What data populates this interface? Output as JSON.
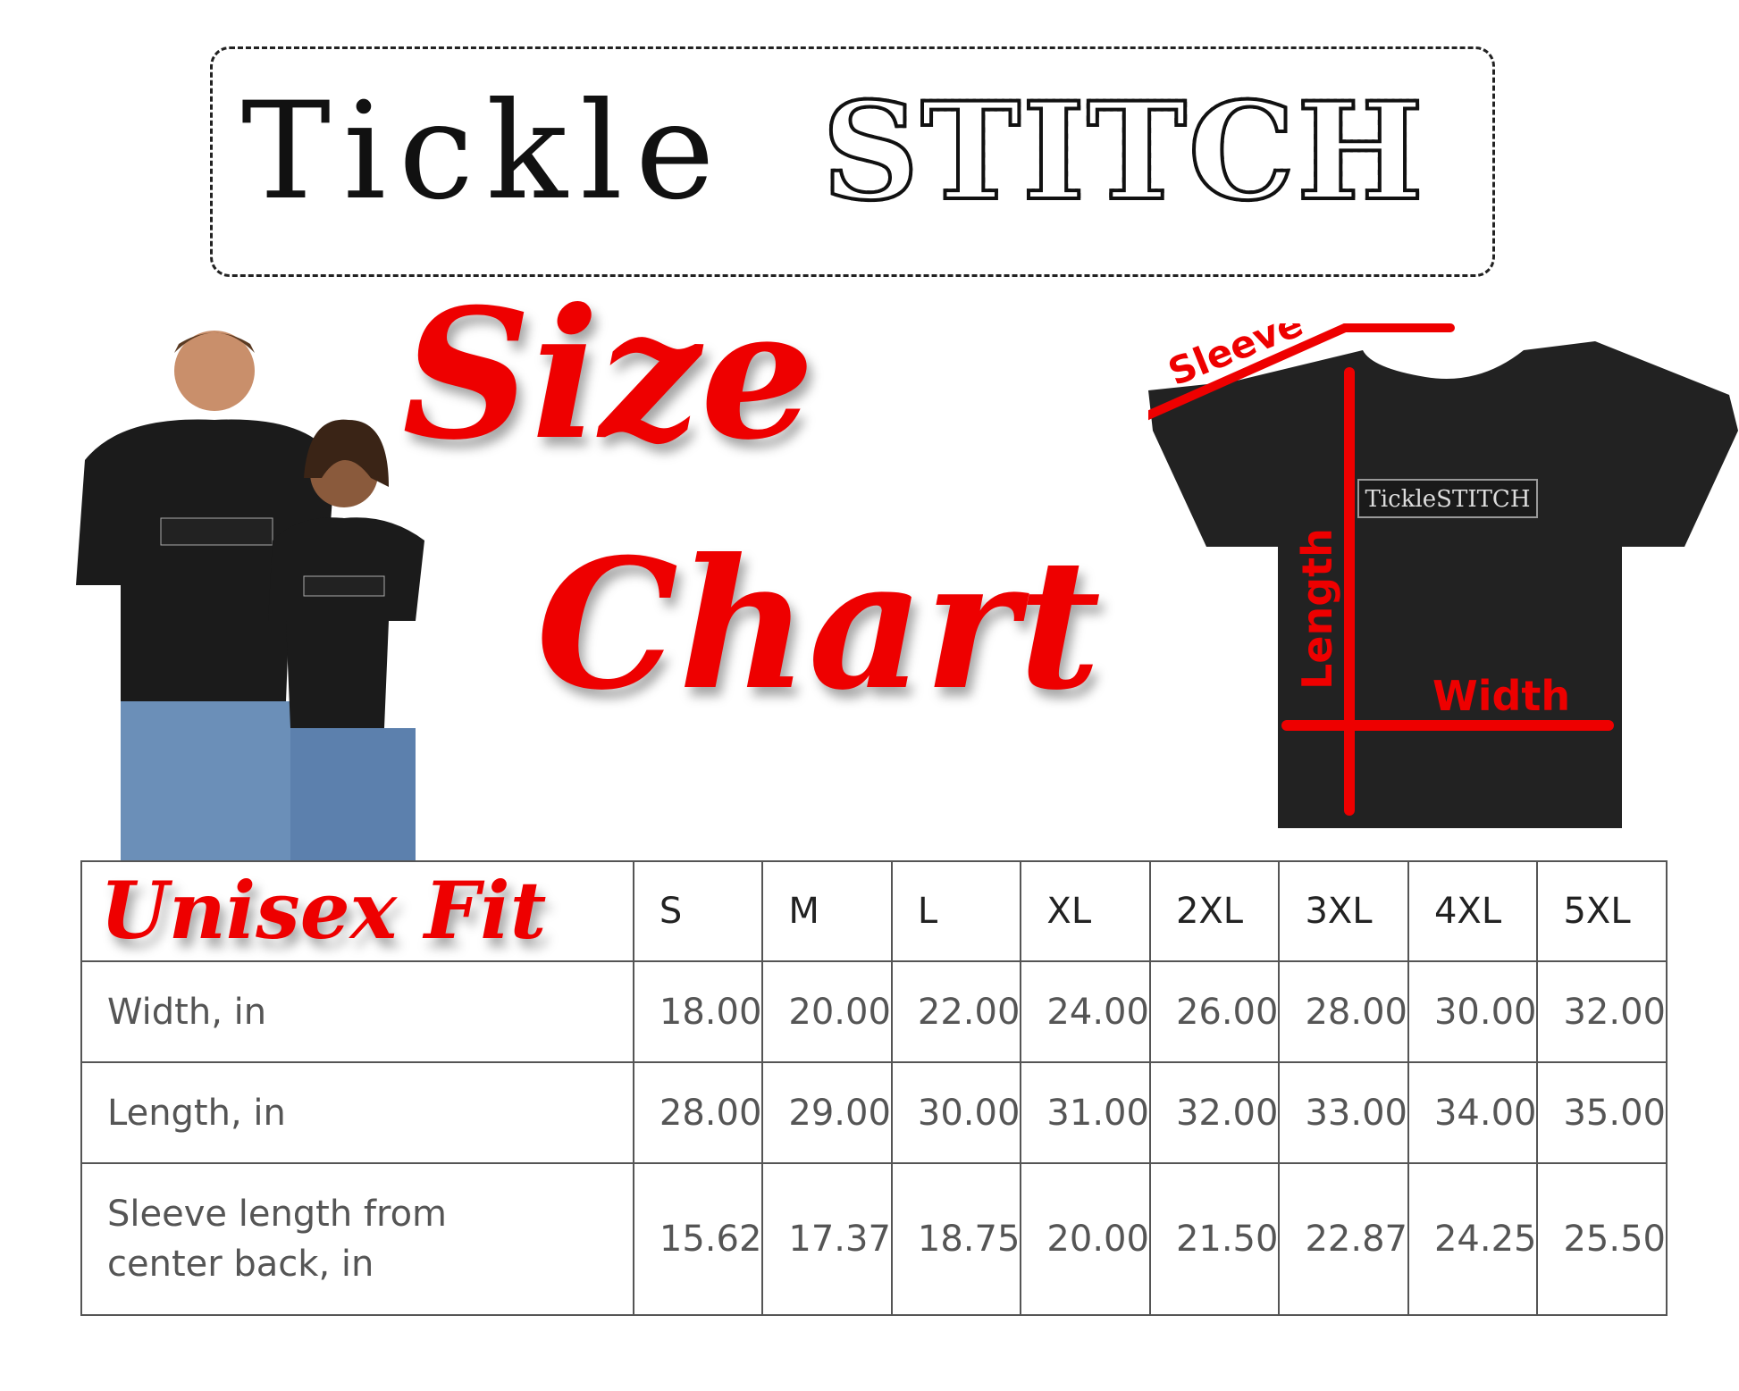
{
  "logo": {
    "part1": "Tickle",
    "part2": "STITCH"
  },
  "heading": {
    "line1": "Size",
    "line2": "Chart"
  },
  "fit_label": "Unisex Fit",
  "diagram": {
    "shirt_logo": "TickleSTITCH",
    "sleeve": "Sleeve",
    "length": "Length",
    "width": "Width",
    "accent_color": "#ee0000"
  },
  "table": {
    "sizes": [
      "S",
      "M",
      "L",
      "XL",
      "2XL",
      "3XL",
      "4XL",
      "5XL"
    ],
    "rows": [
      {
        "label": "Width, in",
        "values": [
          "18.00",
          "20.00",
          "22.00",
          "24.00",
          "26.00",
          "28.00",
          "30.00",
          "32.00"
        ]
      },
      {
        "label": "Length, in",
        "values": [
          "28.00",
          "29.00",
          "30.00",
          "31.00",
          "32.00",
          "33.00",
          "34.00",
          "35.00"
        ]
      },
      {
        "label": "Sleeve length from center back, in",
        "values": [
          "15.62",
          "17.37",
          "18.75",
          "20.00",
          "21.50",
          "22.87",
          "24.25",
          "25.50"
        ]
      }
    ]
  }
}
